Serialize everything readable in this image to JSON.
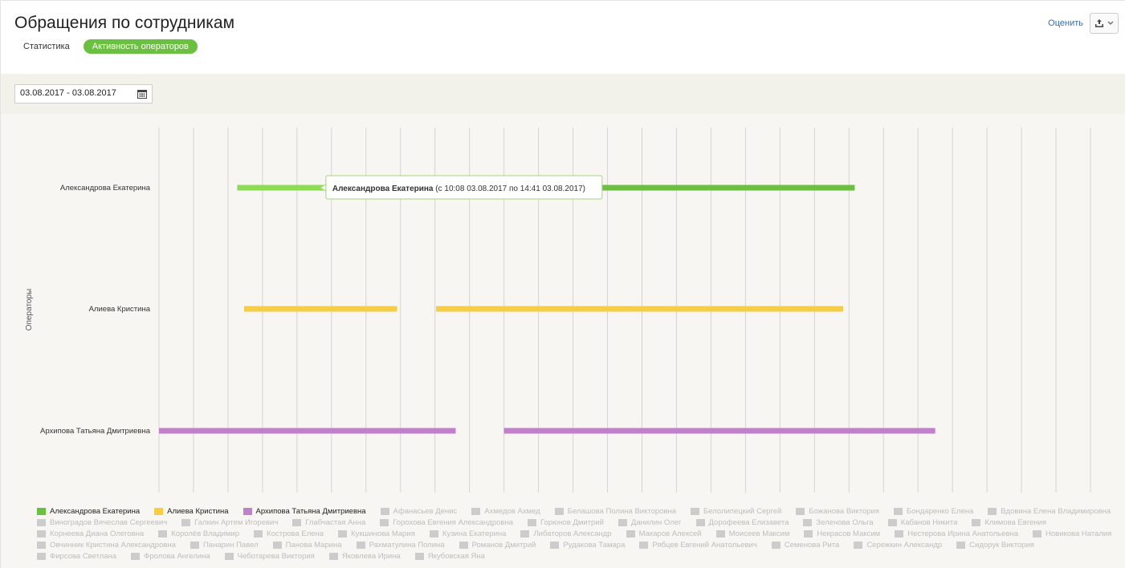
{
  "header": {
    "title": "Обращения по сотрудникам",
    "tabs": [
      {
        "label": "Статистика",
        "active": false
      },
      {
        "label": "Активность операторов",
        "active": true
      }
    ],
    "rate_link": "Оценить",
    "export_icon": "export-icon"
  },
  "toolbar": {
    "date_range": "03.08.2017 - 03.08.2017",
    "calendar_icon": "calendar-icon"
  },
  "colors": {
    "accent": "#6cc041",
    "series_green": "#6cc041",
    "series_green_light": "#8edc55",
    "series_yellow": "#f6cd45",
    "series_purple": "#c17fcc",
    "legend_disabled": "#cccccc",
    "grid": "#d4d4d4",
    "chart_bg": "#f7f6f2"
  },
  "chart_data": {
    "type": "gantt",
    "ylabel": "Операторы",
    "categories": [
      "Александрова Екатерина",
      "Алиева Кристина",
      "Архипова Татьяна Дмитриевна"
    ],
    "x_range": [
      "09:00",
      "22:30"
    ],
    "x_gridlines": 27,
    "grid": true,
    "series": [
      {
        "name": "Александрова Екатерина",
        "color": "#6cc041",
        "intervals": [
          [
            "10:08",
            "14:41"
          ],
          [
            "14:41",
            "19:05"
          ]
        ]
      },
      {
        "name": "Алиева Кристина",
        "color": "#f6cd45",
        "intervals": [
          [
            "10:14",
            "12:27"
          ],
          [
            "13:01",
            "18:55"
          ]
        ]
      },
      {
        "name": "Архипова Татьяна Дмитриевна",
        "color": "#c17fcc",
        "intervals": [
          [
            "09:00",
            "13:18"
          ],
          [
            "14:00",
            "20:15"
          ]
        ]
      }
    ],
    "tooltip": {
      "name": "Александрова Екатерина",
      "text": "(с 10:08 03.08.2017 по 14:41 03.08.2017)"
    },
    "legend": [
      {
        "name": "Александрова Екатерина",
        "visible": true,
        "color": "#6cc041"
      },
      {
        "name": "Алиева Кристина",
        "visible": true,
        "color": "#f6cd45"
      },
      {
        "name": "Архипова Татьяна Дмитриевна",
        "visible": true,
        "color": "#c17fcc"
      },
      {
        "name": "Афанасьев Денис",
        "visible": false
      },
      {
        "name": "Ахмедов Ахмед",
        "visible": false
      },
      {
        "name": "Белашова Полина Викторовна",
        "visible": false
      },
      {
        "name": "Белолипецкий Сергей",
        "visible": false
      },
      {
        "name": "Божанова Виктория",
        "visible": false
      },
      {
        "name": "Бондаренко Елена",
        "visible": false
      },
      {
        "name": "Вдовина Елена Владимировна",
        "visible": false
      },
      {
        "name": "Виноградов Вячеслав Сергеевич",
        "visible": false
      },
      {
        "name": "Галкин Артем Игоревич",
        "visible": false
      },
      {
        "name": "Глабчастая Анна",
        "visible": false
      },
      {
        "name": "Горохова Евгения Александровна",
        "visible": false
      },
      {
        "name": "Горюнов Дмитрий",
        "visible": false
      },
      {
        "name": "Данилин Олег",
        "visible": false
      },
      {
        "name": "Дорофеева Елизавета",
        "visible": false
      },
      {
        "name": "Зеленова Ольга",
        "visible": false
      },
      {
        "name": "Кабанов Никита",
        "visible": false
      },
      {
        "name": "Климова Евгения",
        "visible": false
      },
      {
        "name": "Корнеева Диана Олеговна",
        "visible": false
      },
      {
        "name": "Королёв Владимир",
        "visible": false
      },
      {
        "name": "Кострова Елена",
        "visible": false
      },
      {
        "name": "Кукшинова Мария",
        "visible": false
      },
      {
        "name": "Кузина Екатерина",
        "visible": false
      },
      {
        "name": "Либаторов Александр",
        "visible": false
      },
      {
        "name": "Макаров Алексей",
        "visible": false
      },
      {
        "name": "Моисеев Максим",
        "visible": false
      },
      {
        "name": "Некрасов Максим",
        "visible": false
      },
      {
        "name": "Нестерова Ирина Анатольевна",
        "visible": false
      },
      {
        "name": "Новикова Наталия",
        "visible": false
      },
      {
        "name": "Овчинник Кристина Александровна",
        "visible": false
      },
      {
        "name": "Панарин Павел",
        "visible": false
      },
      {
        "name": "Панова Марина",
        "visible": false
      },
      {
        "name": "Рахматулина Полина",
        "visible": false
      },
      {
        "name": "Романов Дмитрий",
        "visible": false
      },
      {
        "name": "Рудакова Тамара",
        "visible": false
      },
      {
        "name": "Рябцев Евгений Анатольевич",
        "visible": false
      },
      {
        "name": "Семенова Рита",
        "visible": false
      },
      {
        "name": "Сережкин Александр",
        "visible": false
      },
      {
        "name": "Сидорук Виктория",
        "visible": false
      },
      {
        "name": "Фирсова Светлана",
        "visible": false
      },
      {
        "name": "Фролова Ангелина",
        "visible": false
      },
      {
        "name": "Чеботарева Виктория",
        "visible": false
      },
      {
        "name": "Яковлева Ирина",
        "visible": false
      },
      {
        "name": "Якубовская Яна",
        "visible": false
      }
    ]
  }
}
